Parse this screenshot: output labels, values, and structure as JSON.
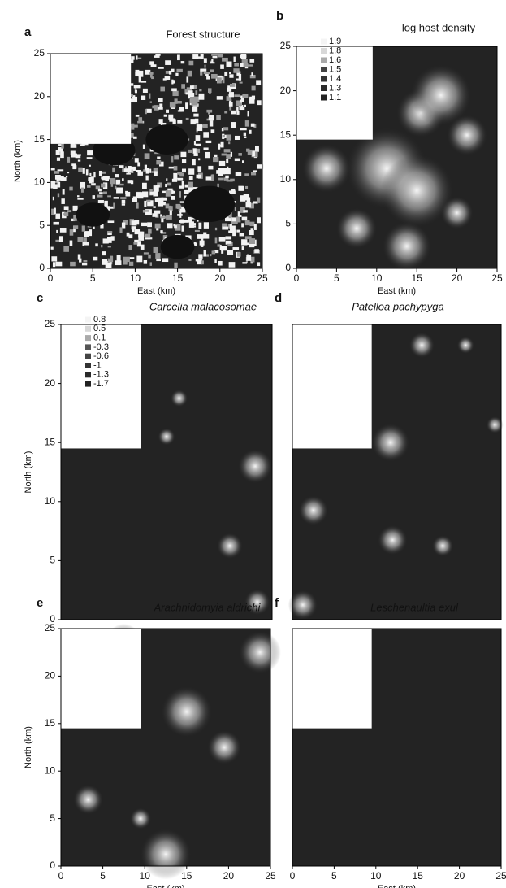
{
  "chart_data": [
    {
      "type": "heatmap",
      "panel": "a",
      "title": "Forest structure",
      "xlabel": "East (km)",
      "ylabel": "North (km)",
      "xlim": [
        0,
        25
      ],
      "ylim": [
        0,
        25
      ],
      "xticks": [
        0,
        5,
        10,
        15,
        20,
        25
      ],
      "yticks": [
        0,
        5,
        10,
        15,
        20,
        25
      ]
    },
    {
      "type": "heatmap",
      "panel": "b",
      "title": "log host density",
      "xlabel": "East (km)",
      "xlim": [
        0,
        25
      ],
      "ylim": [
        0,
        25
      ],
      "xticks": [
        0,
        5,
        10,
        15,
        20,
        25
      ],
      "yticks": [
        0,
        5,
        10,
        15,
        20,
        25
      ],
      "legend": [
        1.9,
        1.8,
        1.6,
        1.5,
        1.4,
        1.3,
        1.1
      ]
    },
    {
      "type": "heatmap",
      "panel": "c",
      "title": "Carcelia malacosomae",
      "ylabel": "North (km)",
      "xlim": [
        0,
        25
      ],
      "ylim": [
        0,
        25
      ],
      "yticks": [
        0,
        5,
        10,
        15,
        20,
        25
      ],
      "legend": [
        0.8,
        0.5,
        0.1,
        -0.3,
        -0.6,
        -1.0,
        -1.3,
        -1.7
      ]
    },
    {
      "type": "heatmap",
      "panel": "d",
      "title": "Patelloa pachypyga",
      "xlim": [
        0,
        25
      ],
      "ylim": [
        0,
        25
      ]
    },
    {
      "type": "heatmap",
      "panel": "e",
      "title": "Arachnidomyia aldrichi",
      "xlabel": "East (km)",
      "ylabel": "North (km)",
      "xlim": [
        0,
        25
      ],
      "ylim": [
        0,
        25
      ],
      "xticks": [
        0,
        5,
        10,
        15,
        20,
        25
      ],
      "yticks": [
        0,
        5,
        10,
        15,
        20,
        25
      ]
    },
    {
      "type": "heatmap",
      "panel": "f",
      "title": "Leschenaultia exul",
      "xlabel": "East (km)",
      "xlim": [
        0,
        25
      ],
      "ylim": [
        0,
        25
      ],
      "xticks": [
        0,
        5,
        10,
        15,
        20,
        25
      ]
    }
  ]
}
